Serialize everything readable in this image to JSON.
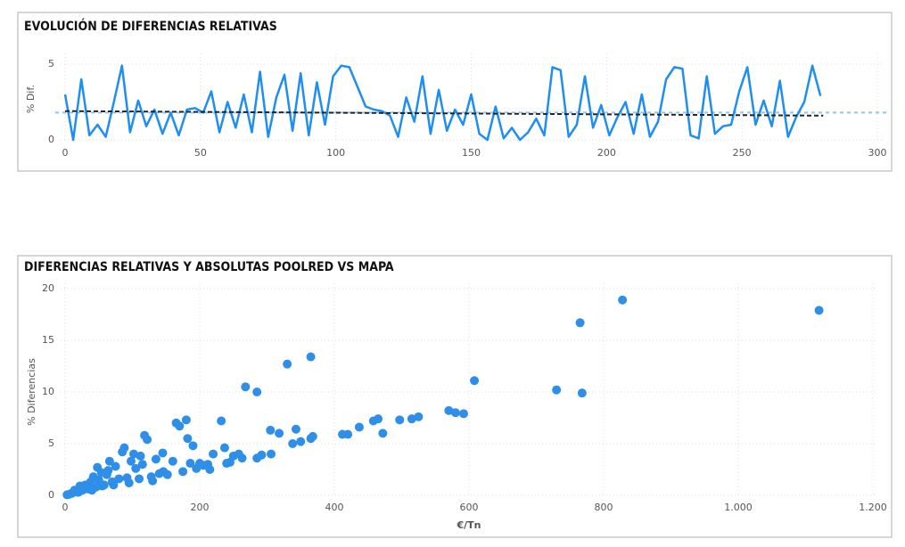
{
  "chart_data": [
    {
      "type": "line",
      "title": "EVOLUCIÓN DE DIFERENCIAS RELATIVAS",
      "y_label": "% Dif.",
      "xlim": [
        0,
        300
      ],
      "xticks": [
        0,
        50,
        100,
        150,
        200,
        250,
        300
      ],
      "ylim": [
        0,
        5.4
      ],
      "yticks": [
        0,
        5
      ],
      "grid": true,
      "series": [
        {
          "color": "#1e8ef0",
          "x": [
            0,
            3,
            6,
            9,
            12,
            15,
            18,
            21,
            24,
            27,
            30,
            33,
            36,
            39,
            42,
            45,
            48,
            51,
            54,
            57,
            60,
            63,
            66,
            69,
            72,
            75,
            78,
            81,
            84,
            87,
            90,
            93,
            96,
            99,
            102,
            105,
            108,
            111,
            114,
            117,
            120,
            123,
            126,
            129,
            132,
            135,
            138,
            141,
            144,
            147,
            150,
            153,
            156,
            159,
            162,
            165,
            168,
            171,
            174,
            177,
            180,
            183,
            186,
            189,
            192,
            195,
            198,
            201,
            204,
            207,
            210,
            213,
            216,
            219,
            222,
            225,
            228,
            231,
            234,
            237,
            240,
            243,
            246,
            249,
            252,
            255,
            258,
            261,
            264,
            267,
            270,
            273,
            276,
            279
          ],
          "values": [
            3.0,
            0.0,
            4.0,
            0.3,
            1.0,
            0.2,
            2.5,
            4.9,
            0.5,
            2.6,
            0.9,
            2.0,
            0.4,
            1.8,
            0.3,
            2.0,
            2.1,
            1.8,
            3.2,
            0.5,
            2.5,
            0.8,
            3.0,
            0.5,
            4.5,
            0.2,
            2.8,
            4.3,
            0.6,
            4.4,
            0.3,
            3.8,
            1.0,
            4.2,
            4.9,
            4.8,
            3.5,
            2.2,
            2.0,
            1.9,
            1.6,
            0.2,
            2.8,
            1.2,
            4.2,
            0.4,
            3.3,
            0.6,
            2.0,
            1.0,
            3.0,
            0.4,
            0.0,
            2.2,
            0.1,
            0.8,
            0.0,
            0.5,
            1.4,
            0.3,
            4.8,
            4.6,
            0.2,
            1.0,
            4.2,
            0.8,
            2.3,
            0.3,
            1.5,
            2.5,
            0.4,
            3.0,
            0.2,
            1.2,
            4.0,
            4.8,
            4.7,
            0.3,
            0.1,
            4.2,
            0.4,
            0.9,
            1.0,
            3.2,
            4.8,
            1.0,
            2.6,
            0.9,
            3.9,
            0.2,
            1.5,
            2.5,
            4.9,
            2.9
          ]
        }
      ],
      "trend": {
        "color": "#222222",
        "x": [
          0,
          280
        ],
        "values": [
          1.9,
          1.6
        ]
      },
      "reference_line": {
        "color": "#8cc4f2",
        "value": 1.8
      }
    },
    {
      "type": "scatter",
      "title": "DIFERENCIAS RELATIVAS Y ABSOLUTAS POOLRED VS MAPA",
      "x_label": "€/Tn",
      "y_label": "% Diferencias",
      "xlim": [
        0,
        1200
      ],
      "xticks": [
        0,
        200,
        400,
        600,
        800,
        {
          "value": 1000,
          "label": "1.000"
        },
        {
          "value": 1200,
          "label": "1.200"
        }
      ],
      "ylim": [
        0,
        20
      ],
      "yticks": [
        0,
        5,
        10,
        15,
        20
      ],
      "grid": true,
      "series": [
        {
          "color": "#2f8fe8",
          "x": [
            828,
            1120,
            765,
            730,
            768,
            608,
            365,
            330,
            268,
            285,
            570,
            580,
            592,
            525,
            515,
            497,
            465,
            458,
            472,
            437,
            420,
            412,
            368,
            365,
            350,
            343,
            318,
            305,
            338,
            306,
            285,
            292,
            263,
            258,
            250,
            245,
            240,
            232,
            237,
            220,
            212,
            205,
            200,
            195,
            186,
            182,
            180,
            170,
            165,
            160,
            152,
            146,
            140,
            135,
            128,
            122,
            118,
            115,
            110,
            105,
            98,
            92,
            88,
            85,
            80,
            75,
            70,
            66,
            62,
            58,
            54,
            50,
            46,
            42,
            38,
            35,
            30,
            26,
            22,
            18,
            14,
            10,
            6,
            3,
            20,
            28,
            40,
            55,
            72,
            95,
            130,
            175,
            215,
            48,
            64,
            102,
            145,
            190,
            112
          ],
          "values": [
            18.9,
            17.9,
            16.7,
            10.2,
            9.9,
            11.1,
            13.4,
            12.7,
            10.5,
            10.0,
            8.2,
            8.0,
            7.9,
            7.6,
            7.4,
            7.3,
            7.4,
            7.2,
            6.0,
            6.6,
            5.9,
            5.9,
            5.7,
            5.5,
            5.2,
            6.4,
            6.0,
            6.3,
            5.0,
            4.0,
            3.6,
            3.9,
            3.6,
            4.0,
            3.8,
            3.2,
            3.1,
            7.2,
            4.6,
            4.0,
            3.0,
            2.9,
            3.1,
            2.6,
            3.1,
            5.5,
            7.3,
            6.7,
            7.0,
            3.3,
            2.0,
            2.3,
            2.1,
            3.5,
            1.8,
            5.4,
            5.8,
            3.0,
            1.6,
            2.6,
            3.3,
            1.7,
            4.6,
            4.2,
            1.6,
            2.8,
            1.3,
            3.3,
            2.0,
            1.0,
            2.2,
            1.5,
            0.8,
            1.8,
            1.3,
            0.6,
            1.0,
            0.5,
            0.9,
            0.3,
            0.5,
            0.2,
            0.1,
            0.05,
            0.3,
            0.7,
            0.5,
            0.9,
            1.0,
            1.2,
            1.4,
            2.3,
            2.5,
            2.7,
            2.4,
            4.0,
            4.1,
            4.8,
            3.8
          ]
        }
      ]
    }
  ]
}
